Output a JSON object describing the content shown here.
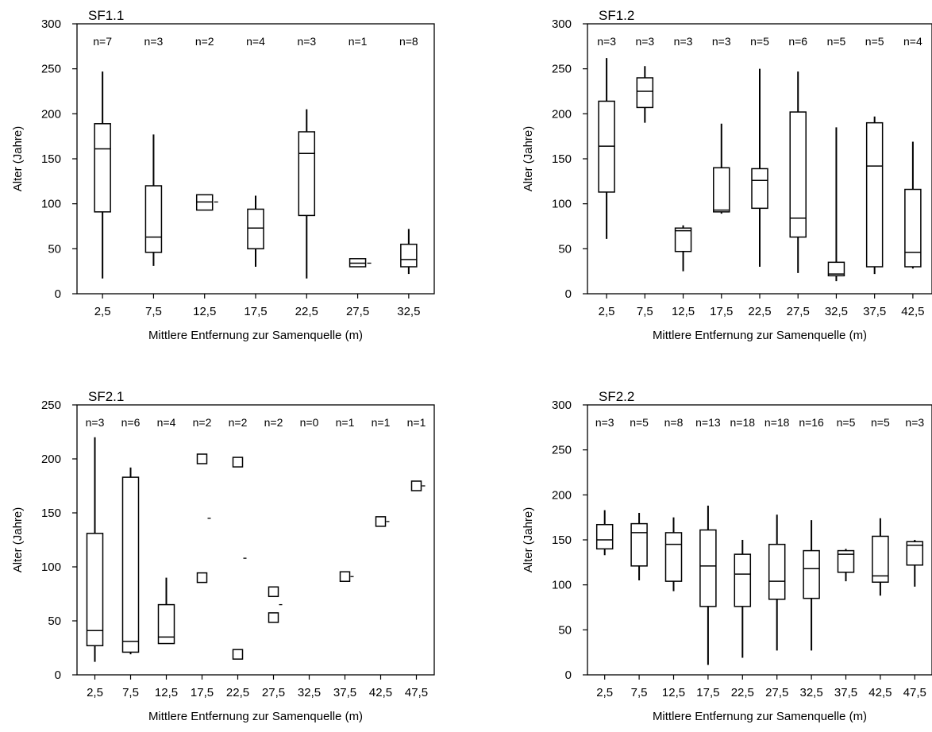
{
  "chart_data": [
    {
      "type": "box",
      "title": "SF1.1",
      "xlabel": "Mittlere Entfernung zur Samenquelle (m)",
      "ylabel": "Alter (Jahre)",
      "ylim": [
        0,
        300
      ],
      "yticks": [
        0,
        50,
        100,
        150,
        200,
        250,
        300
      ],
      "categories": [
        "2,5",
        "7,5",
        "12,5",
        "17,5",
        "22,5",
        "27,5",
        "32,5"
      ],
      "n_labels": [
        "n=7",
        "n=3",
        "n=2",
        "n=4",
        "n=3",
        "n=1",
        "n=8"
      ],
      "boxes": [
        {
          "min": 17,
          "q1": 91,
          "median": 161,
          "q3": 189,
          "max": 247
        },
        {
          "min": 31,
          "q1": 46,
          "median": 63,
          "q3": 120,
          "max": 177
        },
        {
          "min": 93,
          "q1": 93,
          "median": 102,
          "q3": 110,
          "max": 110,
          "tick": 102
        },
        {
          "min": 30,
          "q1": 50,
          "median": 73,
          "q3": 94,
          "max": 109
        },
        {
          "min": 17,
          "q1": 87,
          "median": 156,
          "q3": 180,
          "max": 205
        },
        {
          "min": 30,
          "q1": 30,
          "median": 34,
          "q3": 39,
          "max": 39,
          "tick": 34
        },
        {
          "min": 22,
          "q1": 30,
          "median": 38,
          "q3": 55,
          "max": 72
        }
      ]
    },
    {
      "type": "box",
      "title": "SF1.2",
      "xlabel": "Mittlere Entfernung zur Samenquelle (m)",
      "ylabel": "Alter (Jahre)",
      "ylim": [
        0,
        300
      ],
      "yticks": [
        0,
        50,
        100,
        150,
        200,
        250,
        300
      ],
      "categories": [
        "2,5",
        "7,5",
        "12,5",
        "17,5",
        "22,5",
        "27,5",
        "32,5",
        "37,5",
        "42,5"
      ],
      "n_labels": [
        "n=3",
        "n=3",
        "n=3",
        "n=3",
        "n=5",
        "n=6",
        "n=5",
        "n=5",
        "n=4"
      ],
      "boxes": [
        {
          "min": 61,
          "q1": 113,
          "median": 164,
          "q3": 214,
          "max": 262
        },
        {
          "min": 190,
          "q1": 207,
          "median": 225,
          "q3": 240,
          "max": 253
        },
        {
          "min": 25,
          "q1": 47,
          "median": 70,
          "q3": 73,
          "max": 76
        },
        {
          "min": 89,
          "q1": 91,
          "median": 93,
          "q3": 140,
          "max": 189
        },
        {
          "min": 30,
          "q1": 95,
          "median": 126,
          "q3": 139,
          "max": 250
        },
        {
          "min": 23,
          "q1": 63,
          "median": 84,
          "q3": 202,
          "max": 247
        },
        {
          "min": 14,
          "q1": 20,
          "median": 22,
          "q3": 35,
          "max": 185
        },
        {
          "min": 22,
          "q1": 30,
          "median": 142,
          "q3": 190,
          "max": 197
        },
        {
          "min": 28,
          "q1": 30,
          "median": 46,
          "q3": 116,
          "max": 169
        }
      ]
    },
    {
      "type": "box",
      "title": "SF2.1",
      "xlabel": "Mittlere Entfernung zur Samenquelle (m)",
      "ylabel": "Alter (Jahre)",
      "ylim": [
        0,
        250
      ],
      "yticks": [
        0,
        50,
        100,
        150,
        200,
        250
      ],
      "categories": [
        "2,5",
        "7,5",
        "12,5",
        "17,5",
        "22,5",
        "27,5",
        "32,5",
        "37,5",
        "42,5",
        "47,5"
      ],
      "n_labels": [
        "n=3",
        "n=6",
        "n=4",
        "n=2",
        "n=2",
        "n=2",
        "n=0",
        "n=1",
        "n=1",
        "n=1"
      ],
      "boxes": [
        {
          "min": 12,
          "q1": 27,
          "median": 41,
          "q3": 131,
          "max": 220
        },
        {
          "min": 19,
          "q1": 21,
          "median": 31,
          "q3": 183,
          "max": 192
        },
        {
          "min": 29,
          "q1": 29,
          "median": 35,
          "q3": 65,
          "max": 90
        },
        null,
        null,
        null,
        null,
        null,
        null,
        null
      ],
      "points": [
        {
          "category": 3,
          "value": 200
        },
        {
          "category": 3,
          "value": 90
        },
        {
          "category": 4,
          "value": 197
        },
        {
          "category": 4,
          "value": 19
        },
        {
          "category": 5,
          "value": 77
        },
        {
          "category": 5,
          "value": 53
        },
        {
          "category": 7,
          "value": 91
        },
        {
          "category": 8,
          "value": 142
        },
        {
          "category": 9,
          "value": 175
        }
      ],
      "dashes": [
        {
          "category": 3,
          "value": 145
        },
        {
          "category": 4,
          "value": 108
        },
        {
          "category": 5,
          "value": 65
        },
        {
          "category": 7,
          "value": 91
        },
        {
          "category": 8,
          "value": 142
        },
        {
          "category": 9,
          "value": 175
        }
      ]
    },
    {
      "type": "box",
      "title": "SF2.2",
      "xlabel": "Mittlere Entfernung zur Samenquelle (m)",
      "ylabel": "Alter (Jahre)",
      "ylim": [
        0,
        300
      ],
      "yticks": [
        0,
        50,
        100,
        150,
        200,
        250,
        300
      ],
      "categories": [
        "2,5",
        "7,5",
        "12,5",
        "17,5",
        "22,5",
        "27,5",
        "32,5",
        "37,5",
        "42,5",
        "47,5"
      ],
      "n_labels": [
        "n=3",
        "n=5",
        "n=8",
        "n=13",
        "n=18",
        "n=18",
        "n=16",
        "n=5",
        "n=5",
        "n=3"
      ],
      "boxes": [
        {
          "min": 133,
          "q1": 140,
          "median": 150,
          "q3": 167,
          "max": 183
        },
        {
          "min": 105,
          "q1": 121,
          "median": 158,
          "q3": 168,
          "max": 180
        },
        {
          "min": 93,
          "q1": 104,
          "median": 145,
          "q3": 158,
          "max": 175
        },
        {
          "min": 11,
          "q1": 76,
          "median": 121,
          "q3": 161,
          "max": 188
        },
        {
          "min": 19,
          "q1": 76,
          "median": 112,
          "q3": 134,
          "max": 150
        },
        {
          "min": 27,
          "q1": 84,
          "median": 104,
          "q3": 145,
          "max": 178
        },
        {
          "min": 27,
          "q1": 85,
          "median": 118,
          "q3": 138,
          "max": 172
        },
        {
          "min": 104,
          "q1": 114,
          "median": 134,
          "q3": 138,
          "max": 140
        },
        {
          "min": 88,
          "q1": 103,
          "median": 110,
          "q3": 154,
          "max": 174
        },
        {
          "min": 98,
          "q1": 122,
          "median": 144,
          "q3": 148,
          "max": 150
        }
      ]
    }
  ]
}
